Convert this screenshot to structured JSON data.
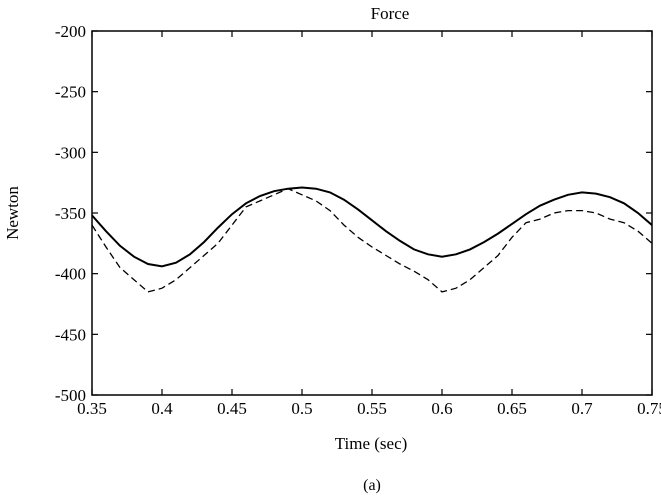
{
  "figure": {
    "caption": "(a)"
  },
  "chart_data": {
    "type": "line",
    "title": "Force",
    "xlabel": "Time (sec)",
    "ylabel": "Newton",
    "xlim": [
      0.35,
      0.75
    ],
    "ylim": [
      -500,
      -200
    ],
    "grid": false,
    "x_ticks": [
      0.35,
      0.4,
      0.45,
      0.5,
      0.55,
      0.6,
      0.65,
      0.7,
      0.75
    ],
    "x_tick_labels": [
      "0.35",
      "0.4",
      "0.45",
      "0.5",
      "0.55",
      "0.6",
      "0.65",
      "0.7",
      "0.75"
    ],
    "y_ticks": [
      -200,
      -250,
      -300,
      -350,
      -400,
      -450,
      -500
    ],
    "y_tick_labels": [
      "-200",
      "-250",
      "-300",
      "-350",
      "-400",
      "-450",
      "-500"
    ],
    "series": [
      {
        "style": "solid",
        "x": [
          0.35,
          0.36,
          0.37,
          0.38,
          0.39,
          0.4,
          0.41,
          0.42,
          0.43,
          0.44,
          0.45,
          0.46,
          0.47,
          0.48,
          0.49,
          0.5,
          0.51,
          0.52,
          0.53,
          0.54,
          0.55,
          0.56,
          0.57,
          0.58,
          0.59,
          0.6,
          0.61,
          0.62,
          0.63,
          0.64,
          0.65,
          0.66,
          0.67,
          0.68,
          0.69,
          0.7,
          0.71,
          0.72,
          0.73,
          0.74,
          0.75
        ],
        "y": [
          -352,
          -365,
          -377,
          -386,
          -392,
          -394,
          -391,
          -384,
          -374,
          -362,
          -351,
          -342,
          -336,
          -332,
          -330,
          -329,
          -330,
          -333,
          -339,
          -347,
          -356,
          -365,
          -373,
          -380,
          -384,
          -386,
          -384,
          -380,
          -374,
          -367,
          -359,
          -351,
          -344,
          -339,
          -335,
          -333,
          -334,
          -337,
          -342,
          -350,
          -360
        ]
      },
      {
        "style": "dashed",
        "x": [
          0.35,
          0.36,
          0.37,
          0.38,
          0.39,
          0.4,
          0.41,
          0.42,
          0.43,
          0.44,
          0.45,
          0.46,
          0.47,
          0.48,
          0.49,
          0.5,
          0.51,
          0.52,
          0.53,
          0.54,
          0.55,
          0.56,
          0.57,
          0.58,
          0.59,
          0.6,
          0.61,
          0.62,
          0.63,
          0.64,
          0.65,
          0.66,
          0.67,
          0.68,
          0.69,
          0.7,
          0.71,
          0.72,
          0.73,
          0.74,
          0.75
        ],
        "y": [
          -360,
          -378,
          -395,
          -405,
          -415,
          -412,
          -405,
          -395,
          -385,
          -375,
          -360,
          -345,
          -340,
          -335,
          -330,
          -335,
          -340,
          -348,
          -360,
          -370,
          -378,
          -385,
          -392,
          -398,
          -405,
          -415,
          -412,
          -405,
          -395,
          -385,
          -370,
          -358,
          -355,
          -350,
          -348,
          -348,
          -350,
          -355,
          -358,
          -365,
          -375
        ]
      }
    ]
  }
}
